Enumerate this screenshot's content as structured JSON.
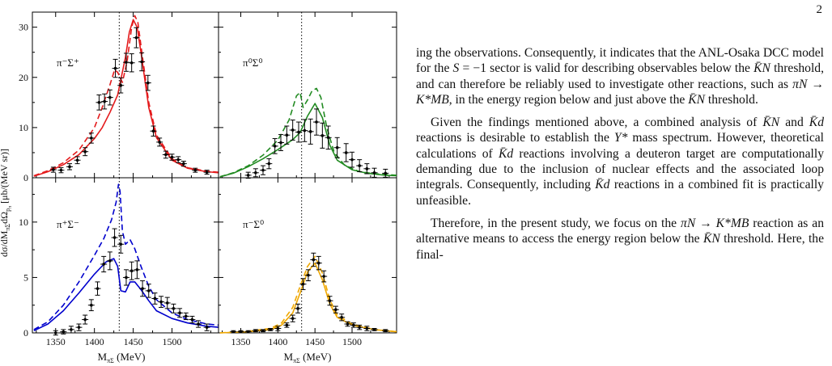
{
  "page": {
    "number": "2"
  },
  "figure": {
    "y_axis_label": "dσ/dM",
    "y_axis_label_sub1": "πΣ",
    "y_axis_label_mid": "dΩ",
    "y_axis_label_sub2": "p",
    "y_axis_label_sub3": "π",
    "y_axis_label_unit": " [μb/(MeV sr)]",
    "x_axis_label_main": "M",
    "x_axis_label_sub": "πΣ",
    "x_axis_label_unit": " (MeV)",
    "threshold_line_x": 1432
  },
  "chart_data": [
    {
      "type": "line",
      "title": "π⁻Σ⁺",
      "xlim": [
        1320,
        1560
      ],
      "ylim": [
        0,
        33
      ],
      "xticks": [
        1350,
        1400,
        1450,
        1500
      ],
      "yticks": [
        0,
        10,
        20,
        30
      ],
      "color": "#e41a1c",
      "series": [
        {
          "style": "solid",
          "x": [
            1322,
            1340,
            1360,
            1380,
            1400,
            1410,
            1420,
            1430,
            1440,
            1445,
            1450,
            1455,
            1460,
            1470,
            1480,
            1500,
            1520,
            1545,
            1560
          ],
          "y": [
            0.3,
            1.2,
            2.6,
            4.6,
            7.8,
            10,
            13,
            16.5,
            24,
            29,
            31.5,
            30,
            25,
            14,
            8,
            3.5,
            1.9,
            1.2,
            1.0
          ]
        },
        {
          "style": "dashed",
          "x": [
            1322,
            1340,
            1360,
            1380,
            1400,
            1410,
            1420,
            1426,
            1430,
            1436,
            1442,
            1448,
            1452,
            1456,
            1462,
            1470,
            1480,
            1500,
            1520,
            1545,
            1560
          ],
          "y": [
            0.4,
            1.4,
            3,
            5.5,
            10,
            14,
            18.5,
            21.5,
            21,
            19,
            23,
            30,
            32.3,
            31,
            24,
            15,
            8.5,
            3.8,
            2,
            1.3,
            1.1
          ]
        }
      ],
      "points": {
        "x": [
          1347,
          1357,
          1368,
          1378,
          1388,
          1396,
          1406,
          1413,
          1420,
          1427,
          1434,
          1441,
          1448,
          1454,
          1461,
          1469,
          1476,
          1484,
          1492,
          1500,
          1508,
          1515,
          1530,
          1545
        ],
        "y": [
          1.6,
          1.5,
          2.2,
          3.5,
          5.2,
          7.9,
          15,
          15.2,
          16,
          21.8,
          18.4,
          23,
          22.9,
          27.9,
          23.1,
          18.9,
          9.3,
          7.1,
          4.6,
          4.1,
          3.6,
          2.8,
          1.5,
          1.1
        ],
        "err": [
          0.5,
          0.5,
          0.6,
          0.7,
          0.8,
          1,
          1.5,
          1.5,
          1.5,
          1.8,
          1.5,
          1.8,
          1.8,
          2,
          1.8,
          1.5,
          1,
          0.8,
          0.7,
          0.6,
          0.6,
          0.5,
          0.4,
          0.4
        ]
      }
    },
    {
      "type": "line",
      "title": "π⁰Σ⁰",
      "xlim": [
        1320,
        1560
      ],
      "ylim": [
        0,
        33
      ],
      "xticks": [
        1350,
        1400,
        1450,
        1500
      ],
      "yticks": [
        0,
        10,
        20,
        30
      ],
      "color": "#228b22",
      "series": [
        {
          "style": "solid",
          "x": [
            1322,
            1340,
            1360,
            1380,
            1400,
            1420,
            1430,
            1440,
            1450,
            1460,
            1470,
            1480,
            1500,
            1520,
            1545,
            1560
          ],
          "y": [
            0.2,
            0.9,
            2.2,
            3.8,
            5.6,
            7.6,
            9,
            12.3,
            14.8,
            12,
            6.5,
            3.5,
            1.6,
            0.9,
            0.5,
            0.4
          ]
        },
        {
          "style": "dashed",
          "x": [
            1322,
            1340,
            1360,
            1380,
            1400,
            1415,
            1425,
            1430,
            1434,
            1440,
            1446,
            1452,
            1458,
            1466,
            1476,
            1490,
            1510,
            1530,
            1560
          ],
          "y": [
            0.2,
            1,
            2.4,
            4.5,
            7.5,
            11.5,
            16.3,
            17,
            14,
            15.5,
            17.3,
            17.8,
            16,
            10,
            5,
            2.5,
            1.2,
            0.8,
            0.5
          ]
        }
      ],
      "points": {
        "x": [
          1360,
          1370,
          1380,
          1388,
          1396,
          1404,
          1412,
          1420,
          1428,
          1436,
          1444,
          1452,
          1460,
          1468,
          1480,
          1492,
          1500,
          1510,
          1520,
          1530,
          1545
        ],
        "y": [
          0.5,
          1,
          1.5,
          2.8,
          6.3,
          7,
          8.5,
          9.5,
          9.1,
          9.4,
          9.2,
          11.1,
          8.4,
          8,
          6,
          5,
          3.6,
          2.4,
          1.8,
          1,
          0.9
        ],
        "err": [
          0.6,
          0.8,
          0.9,
          1,
          1.5,
          1.6,
          1.8,
          2,
          2,
          2.2,
          2.5,
          2.6,
          2.5,
          2.3,
          2,
          1.8,
          1.5,
          1.2,
          1,
          0.9,
          0.8
        ]
      }
    },
    {
      "type": "line",
      "title": "π⁺Σ⁻",
      "xlim": [
        1320,
        1560
      ],
      "ylim": [
        0,
        14
      ],
      "xticks": [
        1350,
        1400,
        1450,
        1500
      ],
      "yticks": [
        0,
        5,
        10
      ],
      "color": "#0000cd",
      "series": [
        {
          "style": "solid",
          "x": [
            1322,
            1340,
            1360,
            1380,
            1400,
            1415,
            1425,
            1430,
            1434,
            1440,
            1446,
            1452,
            1460,
            1470,
            1480,
            1500,
            1520,
            1545,
            1560
          ],
          "y": [
            0.2,
            0.8,
            2,
            3.6,
            5.3,
            6.4,
            6.7,
            6,
            3.8,
            3.7,
            4.6,
            4.6,
            3.9,
            2.9,
            2,
            1.3,
            0.9,
            0.6,
            0.5
          ]
        },
        {
          "style": "dashed",
          "x": [
            1322,
            1340,
            1360,
            1380,
            1400,
            1412,
            1422,
            1428,
            1431,
            1433,
            1436,
            1440,
            1446,
            1452,
            1460,
            1470,
            1480,
            1500,
            1520,
            1545,
            1560
          ],
          "y": [
            0.3,
            1,
            2.5,
            4.6,
            7,
            8.5,
            10.2,
            11.8,
            13.4,
            12.8,
            9.2,
            8,
            8.4,
            7.6,
            6,
            4.2,
            3,
            1.8,
            1.2,
            0.8,
            0.7
          ]
        }
      ],
      "points": {
        "x": [
          1350,
          1360,
          1370,
          1380,
          1388,
          1396,
          1404,
          1412,
          1420,
          1426,
          1434,
          1441,
          1448,
          1455,
          1462,
          1470,
          1478,
          1486,
          1494,
          1502,
          1510,
          1518,
          1526,
          1534,
          1545
        ],
        "y": [
          0,
          0.1,
          0.3,
          0.5,
          1.2,
          2.5,
          4,
          6.2,
          6.5,
          8.6,
          8,
          5,
          5.6,
          5.7,
          4,
          3.8,
          3.1,
          2.8,
          2.7,
          2.2,
          1.8,
          1.5,
          1.2,
          0.8,
          0.5
        ],
        "err": [
          0.2,
          0.2,
          0.3,
          0.3,
          0.4,
          0.5,
          0.6,
          0.7,
          0.8,
          0.8,
          0.8,
          0.7,
          0.8,
          0.8,
          0.7,
          0.6,
          0.5,
          0.5,
          0.5,
          0.4,
          0.4,
          0.3,
          0.3,
          0.3,
          0.3
        ]
      }
    },
    {
      "type": "line",
      "title": "π⁻Σ⁰",
      "xlim": [
        1320,
        1560
      ],
      "ylim": [
        0,
        14
      ],
      "xticks": [
        1350,
        1400,
        1450,
        1500
      ],
      "yticks": [
        0,
        5,
        10
      ],
      "color": "#f0a800",
      "series": [
        {
          "style": "solid",
          "x": [
            1322,
            1360,
            1390,
            1405,
            1420,
            1430,
            1440,
            1450,
            1460,
            1470,
            1480,
            1500,
            1530,
            1560
          ],
          "y": [
            0,
            0.1,
            0.3,
            0.7,
            1.8,
            3.6,
            5.5,
            6.3,
            4.8,
            2.6,
            1.4,
            0.7,
            0.3,
            0.1
          ]
        },
        {
          "style": "dashed",
          "x": [
            1322,
            1360,
            1390,
            1405,
            1420,
            1430,
            1440,
            1450,
            1460,
            1470,
            1480,
            1500,
            1530,
            1560
          ],
          "y": [
            0,
            0.15,
            0.4,
            0.9,
            2.3,
            4.2,
            6,
            6.9,
            5.4,
            3,
            1.6,
            0.8,
            0.3,
            0.1
          ]
        }
      ],
      "points": {
        "x": [
          1340,
          1350,
          1360,
          1370,
          1380,
          1390,
          1400,
          1412,
          1420,
          1427,
          1434,
          1441,
          1448,
          1455,
          1462,
          1470,
          1478,
          1486,
          1494,
          1502,
          1510,
          1520,
          1530,
          1545
        ],
        "y": [
          0.1,
          0.1,
          0.1,
          0.2,
          0.2,
          0.3,
          0.4,
          0.7,
          1.3,
          2.2,
          4.4,
          5.2,
          6.6,
          6.3,
          5.1,
          2.9,
          2.1,
          1.4,
          0.8,
          0.7,
          0.5,
          0.4,
          0.3,
          0.2
        ],
        "err": [
          0.1,
          0.1,
          0.1,
          0.1,
          0.1,
          0.1,
          0.2,
          0.2,
          0.3,
          0.4,
          0.5,
          0.5,
          0.6,
          0.6,
          0.5,
          0.4,
          0.3,
          0.3,
          0.2,
          0.2,
          0.2,
          0.2,
          0.1,
          0.1
        ]
      }
    }
  ],
  "text": {
    "p1_a": "ing the observations. Consequently, it indicates that the ANL-Osaka DCC model for the ",
    "p1_m1": "S",
    "p1_b": " = −1 sector is valid for describing observables below the ",
    "p1_m2": "K̄N",
    "p1_c": " threshold, and can therefore be reliably used to investigate other reactions, such as ",
    "p1_m3": "πN → K*MB",
    "p1_d": ", in the energy region below and just above the ",
    "p1_m4": "K̄N",
    "p1_e": " threshold.",
    "p2_a": "Given the findings mentioned above, a combined analysis of ",
    "p2_m1": "K̄N",
    "p2_b": " and ",
    "p2_m2": "K̄d",
    "p2_c": " reactions is desirable to establish the ",
    "p2_m3": "Y*",
    "p2_d": " mass spectrum. However, theoretical calculations of ",
    "p2_m4": "K̄d",
    "p2_e": " reactions involving a deuteron target are computationally demanding due to the inclusion of nuclear effects and the associated loop integrals. Consequently, including ",
    "p2_m5": "K̄d",
    "p2_f": " reactions in a combined fit is practically unfeasible.",
    "p3_a": "Therefore, in the present study, we focus on the ",
    "p3_m1": "πN → K*MB",
    "p3_b": " reaction as an alternative means to access the energy region below the ",
    "p3_m2": "K̄N",
    "p3_c": " threshold. Here, the final-"
  }
}
